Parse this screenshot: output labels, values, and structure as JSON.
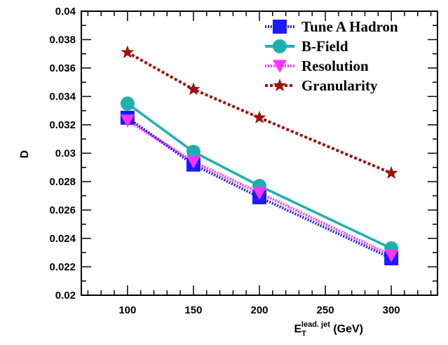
{
  "chart_data": {
    "type": "line",
    "title": "",
    "ylabel": "D",
    "xlabel": {
      "main": "E",
      "sub": "T",
      "sup": "lead. jet",
      "unit": " (GeV)"
    },
    "xlim": [
      65,
      335
    ],
    "ylim": [
      0.02,
      0.04
    ],
    "xticks": [
      100,
      150,
      200,
      250,
      300
    ],
    "xtick_labels": [
      "100",
      "150",
      "200",
      "250",
      "300"
    ],
    "yticks": [
      0.02,
      0.022,
      0.024,
      0.026,
      0.028,
      0.03,
      0.032,
      0.034,
      0.036,
      0.038,
      0.04
    ],
    "ytick_labels": [
      "0.02",
      "0.022",
      "0.024",
      "0.026",
      "0.028",
      "0.03",
      "0.032",
      "0.034",
      "0.036",
      "0.038",
      "0.04"
    ],
    "grid": false,
    "legend_position": "top-right",
    "x": [
      100,
      150,
      200,
      300
    ],
    "series": [
      {
        "name": "Tune A Hadron",
        "values": [
          0.0325,
          0.0292,
          0.0269,
          0.0226
        ],
        "color": "#1a1aff",
        "marker": "square",
        "line_style": "dotted"
      },
      {
        "name": "B-Field",
        "values": [
          0.0335,
          0.0301,
          0.0277,
          0.0233
        ],
        "color": "#1fafaf",
        "marker": "circle",
        "line_style": "solid"
      },
      {
        "name": "Resolution",
        "values": [
          0.0323,
          0.0294,
          0.0272,
          0.0228
        ],
        "color": "#ff33ff",
        "marker": "triangle-down",
        "line_style": "dotted"
      },
      {
        "name": "Granularity",
        "values": [
          0.0371,
          0.0345,
          0.0325,
          0.0286
        ],
        "color": "#a01010",
        "marker": "star",
        "line_style": "dashed"
      }
    ]
  }
}
